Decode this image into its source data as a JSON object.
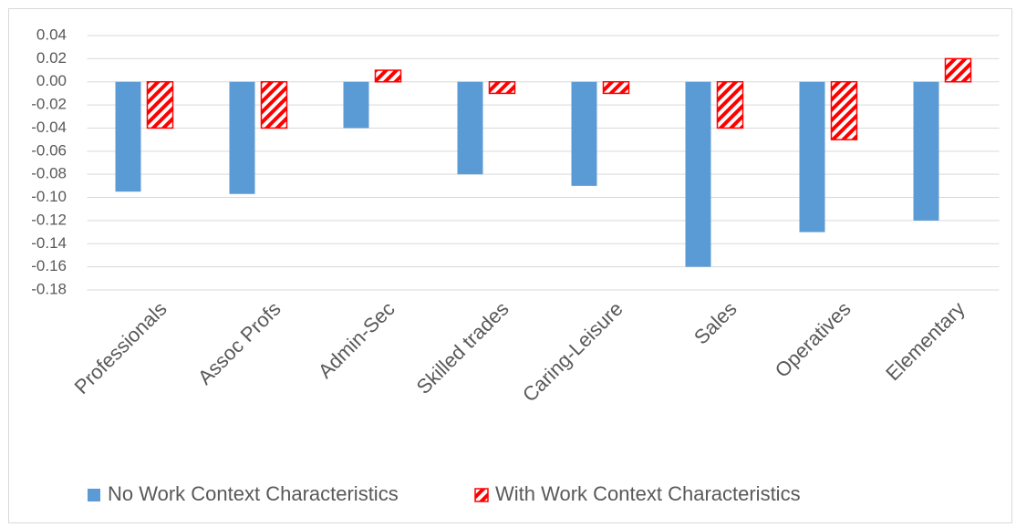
{
  "chart_data": {
    "type": "bar",
    "categories": [
      "Professionals",
      "Assoc  Profs",
      "Admin-Sec",
      "Skilled trades",
      "Caring-Leisure",
      "Sales",
      "Operatives",
      "Elementary"
    ],
    "series": [
      {
        "name": "No Work Context Characteristics",
        "color": "#5b9bd5",
        "values": [
          -0.095,
          -0.097,
          -0.04,
          -0.08,
          -0.09,
          -0.16,
          -0.13,
          -0.12
        ]
      },
      {
        "name": "With Work Context Characteristics",
        "color": "#ff0000",
        "hatch": true,
        "values": [
          -0.04,
          -0.04,
          0.01,
          -0.01,
          -0.01,
          -0.04,
          -0.05,
          0.02
        ]
      }
    ],
    "ylim": [
      -0.18,
      0.04
    ],
    "yticks": [
      0.04,
      0.02,
      {
        "value": 0,
        "label": "0.00"
      },
      -0.02,
      -0.04,
      -0.06,
      -0.08,
      {
        "value": -0.1,
        "label": "-0.10"
      },
      -0.12,
      -0.14,
      -0.16,
      -0.18
    ],
    "grid": true,
    "legend": "bottom"
  }
}
